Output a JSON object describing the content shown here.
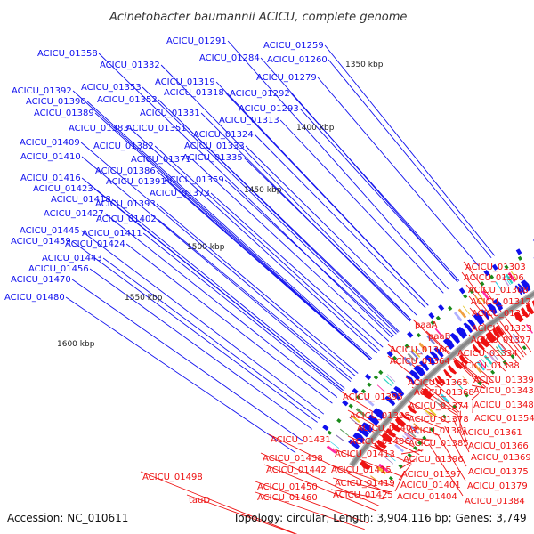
{
  "title": "Acinetobacter baumannii ACICU, complete genome",
  "footer": {
    "accession": "Accession: NC_010611",
    "summary": "Topology: circular; Length: 3,904,116 bp; Genes: 3,749"
  },
  "colors": {
    "plus_strand": "#1010ee",
    "minus_strand": "#ee1111",
    "backbone": "#888888",
    "rna": "#1a8a1a"
  },
  "kbp_ticks": [
    "1350 kbp",
    "1400 kbp",
    "1450 kbp",
    "1500 kbp",
    "1550 kbp",
    "1600 kbp"
  ],
  "plus_labels": [
    "ACICU_01259",
    "ACICU_01260",
    "ACICU_01279",
    "ACICU_01284",
    "ACICU_01291",
    "ACICU_01292",
    "ACICU_01293",
    "ACICU_01313",
    "ACICU_01318",
    "ACICU_01319",
    "ACICU_01324",
    "ACICU_01331",
    "ACICU_01332",
    "ACICU_01333",
    "ACICU_01335",
    "ACICU_01351",
    "ACICU_01352",
    "ACICU_01353",
    "ACICU_01358",
    "ACICU_01359",
    "ACICU_01371",
    "ACICU_01373",
    "ACICU_01382",
    "ACICU_01383",
    "ACICU_01386",
    "ACICU_01389",
    "ACICU_01390",
    "ACICU_01391",
    "ACICU_01392",
    "ACICU_01393",
    "ACICU_01402",
    "ACICU_01409",
    "ACICU_01410",
    "ACICU_01411",
    "ACICU_01416",
    "ACICU_01418",
    "ACICU_01423",
    "ACICU_01424",
    "ACICU_01427",
    "ACICU_01443",
    "ACICU_01445",
    "ACICU_01456",
    "ACICU_01459",
    "ACICU_01470",
    "ACICU_01480"
  ],
  "minus_labels": [
    "ACICU_01303",
    "ACICU_01306",
    "ACICU_01308",
    "ACICU_01312",
    "ACICU_01317",
    "ACICU_01323",
    "ACICU_01327",
    "paaA",
    "paaB",
    "ACICU_01334",
    "ACICU_01338",
    "ACICU_01339",
    "ACICU_01343",
    "ACICU_01348",
    "ACICU_01354",
    "ACICU_01360",
    "ACICU_01361",
    "ACICU_01364",
    "ACICU_01365",
    "ACICU_01366",
    "ACICU_01368",
    "ACICU_01369",
    "ACICU_01374",
    "ACICU_01375",
    "ACICU_01378",
    "ACICU_01379",
    "ACICU_01381",
    "ACICU_01384",
    "ACICU_01385",
    "ACICU_01395",
    "ACICU_01396",
    "ACICU_01397",
    "ACICU_01398",
    "ACICU_01401",
    "ACICU_01403",
    "ACICU_01404",
    "ACICU_01406",
    "ACICU_01413",
    "ACICU_01415",
    "ACICU_01419",
    "ACICU_01425",
    "ACICU_01431",
    "ACICU_01438",
    "ACICU_01442",
    "ACICU_01450",
    "ACICU_01460",
    "ACICU_01498",
    "tauD"
  ]
}
